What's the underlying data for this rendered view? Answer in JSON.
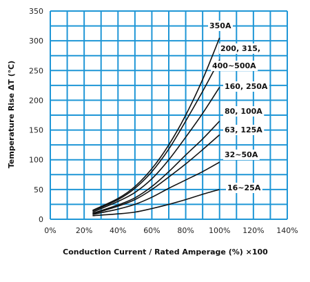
{
  "chart_data": {
    "type": "line",
    "title": "",
    "xlabel": "Conduction Current / Rated Amperage (%) ×100",
    "ylabel": "Temperature Rise ΔT (℃)",
    "xlim": [
      0,
      140
    ],
    "ylim": [
      0,
      350
    ],
    "x_ticks": [
      "0%",
      "20%",
      "40%",
      "60%",
      "80%",
      "100%",
      "120%",
      "140%"
    ],
    "y_ticks": [
      "0",
      "50",
      "100",
      "150",
      "200",
      "250",
      "300",
      "350"
    ],
    "grid": true,
    "legend": "inline-labels",
    "x": [
      25,
      40,
      50,
      60,
      70,
      80,
      90,
      100
    ],
    "series": [
      {
        "name": "350A",
        "values": [
          15,
          35,
          55,
          85,
          125,
          175,
          235,
          305
        ]
      },
      {
        "name": "200, 315, 400~500A",
        "values": [
          14,
          33,
          52,
          80,
          118,
          165,
          215,
          268
        ]
      },
      {
        "name": "160, 250A",
        "values": [
          12,
          30,
          45,
          68,
          100,
          138,
          178,
          222
        ]
      },
      {
        "name": "80, 100A",
        "values": [
          10,
          24,
          36,
          55,
          80,
          108,
          135,
          165
        ]
      },
      {
        "name": "63, 125A",
        "values": [
          9,
          22,
          33,
          50,
          71,
          93,
          117,
          142
        ]
      },
      {
        "name": "32~50A",
        "values": [
          8,
          17,
          25,
          37,
          52,
          66,
          80,
          96
        ]
      },
      {
        "name": "16~25A",
        "values": [
          6,
          9,
          12,
          18,
          25,
          33,
          42,
          50
        ]
      }
    ]
  }
}
